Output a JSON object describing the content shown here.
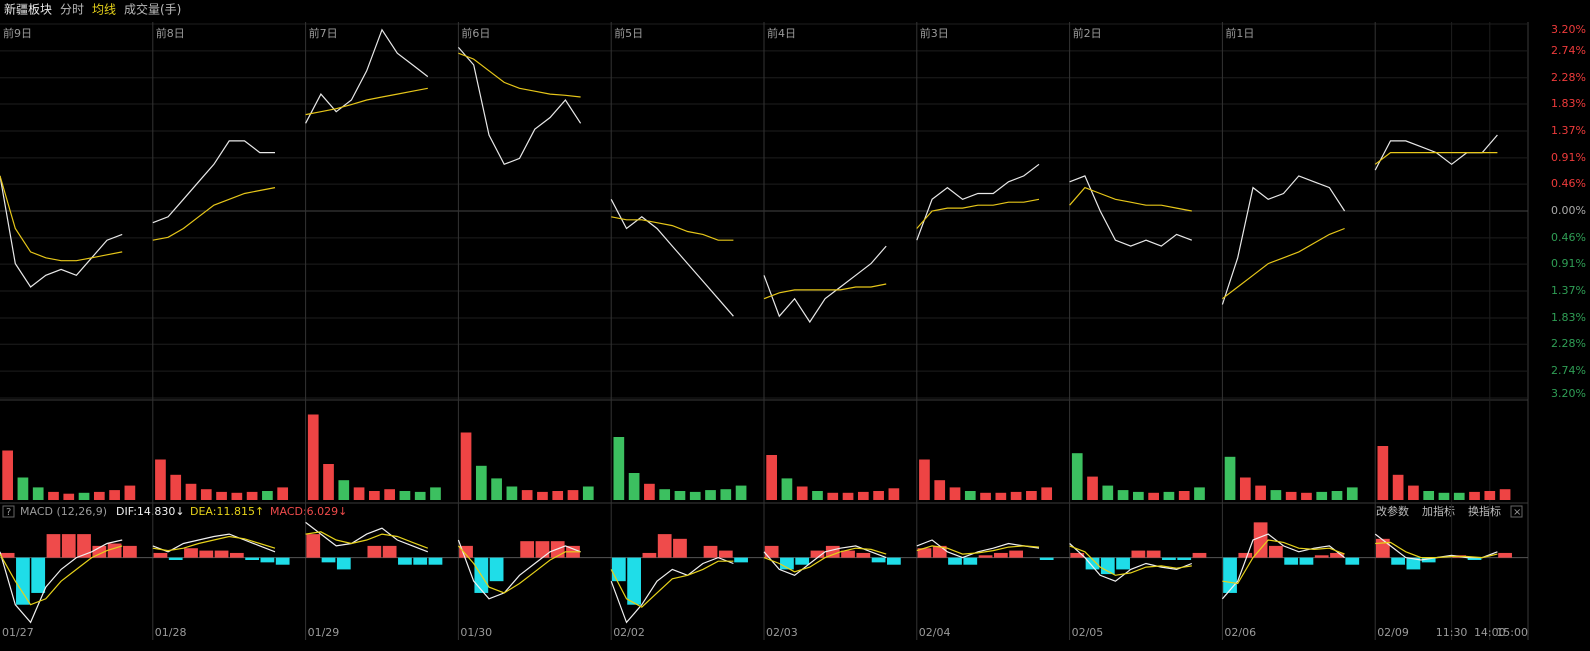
{
  "header": {
    "title": "新疆板块",
    "tabs": [
      "分时",
      "均线",
      "成交量(手)"
    ]
  },
  "chart_data": [
    {
      "type": "line",
      "x": [
        0,
        1,
        2,
        3,
        4,
        5,
        6,
        7,
        8,
        9,
        10,
        11,
        12,
        13,
        14,
        15,
        16,
        17,
        18,
        19,
        20,
        21,
        22,
        23,
        24,
        25,
        26,
        27,
        28,
        29,
        30,
        31,
        32,
        33,
        34,
        35,
        36,
        37,
        38,
        39,
        40,
        41,
        42,
        43,
        44,
        45,
        46,
        47,
        48,
        49,
        50,
        51,
        52,
        53,
        54,
        55,
        56,
        57,
        58,
        59,
        60,
        61,
        62,
        63,
        64,
        65,
        66,
        67,
        68,
        69,
        70,
        71,
        72,
        73,
        74,
        75,
        76,
        77,
        78,
        79,
        80,
        81,
        82,
        83,
        84,
        85,
        86,
        87,
        88,
        89,
        90,
        91,
        92,
        93,
        94,
        95,
        96,
        97,
        98,
        99
      ],
      "xlim": [
        0,
        100
      ],
      "xticks": [
        {
          "value": 0,
          "label": "01/27"
        },
        {
          "value": 10,
          "label": "01/28"
        },
        {
          "value": 20,
          "label": "01/29"
        },
        {
          "value": 30,
          "label": "01/30"
        },
        {
          "value": 40,
          "label": "02/02"
        },
        {
          "value": 50,
          "label": "02/03"
        },
        {
          "value": 60,
          "label": "02/04"
        },
        {
          "value": 70,
          "label": "02/05"
        },
        {
          "value": 80,
          "label": "02/06"
        },
        {
          "value": 90,
          "label": "02/09"
        },
        {
          "value": 95,
          "label": "11:30"
        },
        {
          "value": 97.5,
          "label": "14:00"
        },
        {
          "value": 100,
          "label": "15:00"
        }
      ],
      "day_labels": [
        {
          "value": 0,
          "label": "前9日"
        },
        {
          "value": 10,
          "label": "前8日"
        },
        {
          "value": 20,
          "label": "前7日"
        },
        {
          "value": 30,
          "label": "前6日"
        },
        {
          "value": 40,
          "label": "前5日"
        },
        {
          "value": 50,
          "label": "前4日"
        },
        {
          "value": 60,
          "label": "前3日"
        },
        {
          "value": 70,
          "label": "前2日"
        },
        {
          "value": 80,
          "label": "前1日"
        }
      ],
      "ylim": [
        -3.2,
        3.2
      ],
      "yticks": [
        {
          "value": 3.2,
          "label": "3.20%"
        },
        {
          "value": 2.74,
          "label": "2.74%"
        },
        {
          "value": 2.28,
          "label": "2.28%"
        },
        {
          "value": 1.83,
          "label": "1.83%"
        },
        {
          "value": 1.37,
          "label": "1.37%"
        },
        {
          "value": 0.91,
          "label": "0.91%"
        },
        {
          "value": 0.46,
          "label": "0.46%"
        },
        {
          "value": 0,
          "label": "0.00%"
        },
        {
          "value": -0.46,
          "label": "0.46%"
        },
        {
          "value": -0.91,
          "label": "0.91%"
        },
        {
          "value": -1.37,
          "label": "1.37%"
        },
        {
          "value": -1.83,
          "label": "1.83%"
        },
        {
          "value": -2.28,
          "label": "2.28%"
        },
        {
          "value": -2.74,
          "label": "2.74%"
        },
        {
          "value": -3.2,
          "label": "3.20%"
        }
      ],
      "grid": true,
      "up_color": "#ee3b3b",
      "down_color": "#2f9e55",
      "series": [
        {
          "color": "#e8e8e8",
          "values": [
            0.6,
            -0.9,
            -1.3,
            -1.1,
            -1.0,
            -1.1,
            -0.8,
            -0.5,
            -0.4,
            null,
            -0.2,
            -0.1,
            0.2,
            0.5,
            0.8,
            1.2,
            1.2,
            1.0,
            1.0,
            null,
            1.5,
            2.0,
            1.7,
            1.9,
            2.4,
            3.1,
            2.7,
            2.5,
            2.3,
            null,
            2.8,
            2.5,
            1.3,
            0.8,
            0.9,
            1.4,
            1.6,
            1.9,
            1.5,
            null,
            0.2,
            -0.3,
            -0.1,
            -0.3,
            -0.6,
            -0.9,
            -1.2,
            -1.5,
            -1.8,
            null,
            -1.1,
            -1.8,
            -1.5,
            -1.9,
            -1.5,
            -1.3,
            -1.1,
            -0.9,
            -0.6,
            null,
            -0.5,
            0.2,
            0.4,
            0.2,
            0.3,
            0.3,
            0.5,
            0.6,
            0.8,
            null,
            0.5,
            0.6,
            0.0,
            -0.5,
            -0.6,
            -0.5,
            -0.6,
            -0.4,
            -0.5,
            null,
            -1.6,
            -0.8,
            0.4,
            0.2,
            0.3,
            0.6,
            0.5,
            0.4,
            0.0,
            null,
            0.7,
            1.2,
            1.2,
            1.1,
            1.0,
            0.8,
            1.0,
            1.0,
            1.3,
            null
          ]
        },
        {
          "color": "#e6c619",
          "values": [
            0.6,
            -0.3,
            -0.7,
            -0.8,
            -0.85,
            -0.85,
            -0.8,
            -0.75,
            -0.7,
            null,
            -0.5,
            -0.45,
            -0.3,
            -0.1,
            0.1,
            0.2,
            0.3,
            0.35,
            0.4,
            null,
            1.65,
            1.7,
            1.75,
            1.82,
            1.9,
            1.95,
            2.0,
            2.05,
            2.1,
            null,
            2.7,
            2.6,
            2.4,
            2.2,
            2.1,
            2.05,
            2.0,
            1.98,
            1.95,
            null,
            -0.1,
            -0.15,
            -0.15,
            -0.2,
            -0.25,
            -0.35,
            -0.4,
            -0.5,
            -0.5,
            null,
            -1.5,
            -1.4,
            -1.35,
            -1.35,
            -1.35,
            -1.35,
            -1.3,
            -1.3,
            -1.25,
            null,
            -0.3,
            0.0,
            0.05,
            0.05,
            0.1,
            0.1,
            0.15,
            0.15,
            0.2,
            null,
            0.1,
            0.4,
            0.3,
            0.2,
            0.15,
            0.1,
            0.1,
            0.05,
            0.0,
            null,
            -1.5,
            -1.3,
            -1.1,
            -0.9,
            -0.8,
            -0.7,
            -0.55,
            -0.4,
            -0.3,
            null,
            0.8,
            1.0,
            1.0,
            1.0,
            1.0,
            1.0,
            1.0,
            1.0,
            1.0,
            null
          ]
        }
      ]
    },
    {
      "type": "bar",
      "ylim": [
        0,
        100
      ],
      "up_color": "#ee4444",
      "down_color": "#3cc060",
      "values": [
        55,
        25,
        14,
        9,
        7,
        8,
        9,
        11,
        16,
        null,
        45,
        28,
        18,
        12,
        9,
        8,
        9,
        10,
        14,
        null,
        95,
        40,
        22,
        14,
        10,
        12,
        10,
        9,
        14,
        null,
        75,
        38,
        24,
        15,
        11,
        9,
        10,
        11,
        15,
        null,
        70,
        30,
        18,
        12,
        10,
        9,
        11,
        12,
        16,
        null,
        50,
        24,
        15,
        10,
        8,
        8,
        9,
        10,
        13,
        null,
        45,
        22,
        14,
        10,
        8,
        8,
        9,
        10,
        14,
        null,
        52,
        26,
        16,
        11,
        9,
        8,
        9,
        10,
        14,
        null,
        48,
        25,
        16,
        11,
        9,
        8,
        9,
        10,
        14,
        null,
        60,
        28,
        16,
        10,
        8,
        8,
        9,
        10,
        12,
        null
      ]
    },
    {
      "type": "macd",
      "title": "MACD (12,26,9)",
      "indicators": [
        "DIF:14.830↓",
        "DEA:11.815↑",
        "MACD:6.029↓"
      ],
      "buttons": [
        "改参数",
        "加指标",
        "换指标"
      ],
      "ylim": [
        -70,
        32
      ],
      "up_color": "#ef4b4b",
      "down_color": "#1fdde8",
      "values": [
        4,
        -40,
        -30,
        20,
        20,
        20,
        10,
        12,
        10,
        null,
        4,
        -2,
        8,
        6,
        6,
        4,
        -2,
        -4,
        -6,
        null,
        20,
        -4,
        -10,
        0,
        10,
        10,
        -6,
        -6,
        -6,
        null,
        10,
        -30,
        -20,
        0,
        14,
        14,
        14,
        10,
        0,
        null,
        -20,
        -40,
        4,
        20,
        16,
        0,
        10,
        6,
        -4,
        null,
        10,
        -10,
        -6,
        6,
        10,
        6,
        4,
        -4,
        -6,
        null,
        8,
        10,
        -6,
        -6,
        2,
        4,
        6,
        0,
        -2,
        null,
        4,
        -10,
        -14,
        -10,
        6,
        6,
        -2,
        -2,
        4,
        null,
        -30,
        4,
        30,
        10,
        -6,
        -6,
        2,
        4,
        -6,
        null,
        16,
        -6,
        -10,
        -4,
        0,
        2,
        -2,
        0,
        4,
        null
      ],
      "series": [
        {
          "color": "#f0f0f0",
          "values": [
            5,
            -40,
            -55,
            -25,
            -10,
            0,
            5,
            12,
            15,
            null,
            10,
            5,
            12,
            15,
            18,
            20,
            15,
            10,
            5,
            null,
            30,
            20,
            10,
            12,
            20,
            25,
            15,
            10,
            5,
            null,
            15,
            -20,
            -35,
            -30,
            -15,
            -5,
            5,
            10,
            5,
            null,
            -20,
            -55,
            -40,
            -20,
            -10,
            -15,
            -5,
            0,
            -5,
            null,
            5,
            -10,
            -15,
            -5,
            5,
            8,
            10,
            5,
            0,
            null,
            10,
            15,
            5,
            0,
            5,
            8,
            12,
            10,
            8,
            null,
            12,
            0,
            -15,
            -20,
            -10,
            -5,
            -8,
            -10,
            -5,
            null,
            -35,
            -20,
            15,
            20,
            10,
            5,
            8,
            10,
            0,
            null,
            20,
            10,
            0,
            -2,
            0,
            2,
            0,
            0,
            5,
            null
          ]
        },
        {
          "color": "#e6d21a",
          "values": [
            3,
            -20,
            -40,
            -35,
            -20,
            -10,
            0,
            6,
            10,
            null,
            8,
            6,
            8,
            12,
            15,
            18,
            16,
            12,
            8,
            null,
            20,
            22,
            15,
            12,
            15,
            20,
            18,
            13,
            8,
            null,
            10,
            -5,
            -25,
            -30,
            -22,
            -12,
            -2,
            5,
            5,
            null,
            -10,
            -35,
            -42,
            -30,
            -18,
            -15,
            -10,
            -3,
            -3,
            null,
            0,
            -5,
            -12,
            -8,
            0,
            5,
            8,
            7,
            3,
            null,
            6,
            10,
            8,
            3,
            4,
            6,
            9,
            10,
            9,
            null,
            10,
            5,
            -8,
            -15,
            -13,
            -8,
            -7,
            -9,
            -7,
            null,
            -20,
            -22,
            0,
            15,
            13,
            8,
            7,
            8,
            3,
            null,
            12,
            13,
            5,
            0,
            0,
            1,
            1,
            0,
            3,
            null
          ]
        }
      ]
    }
  ]
}
